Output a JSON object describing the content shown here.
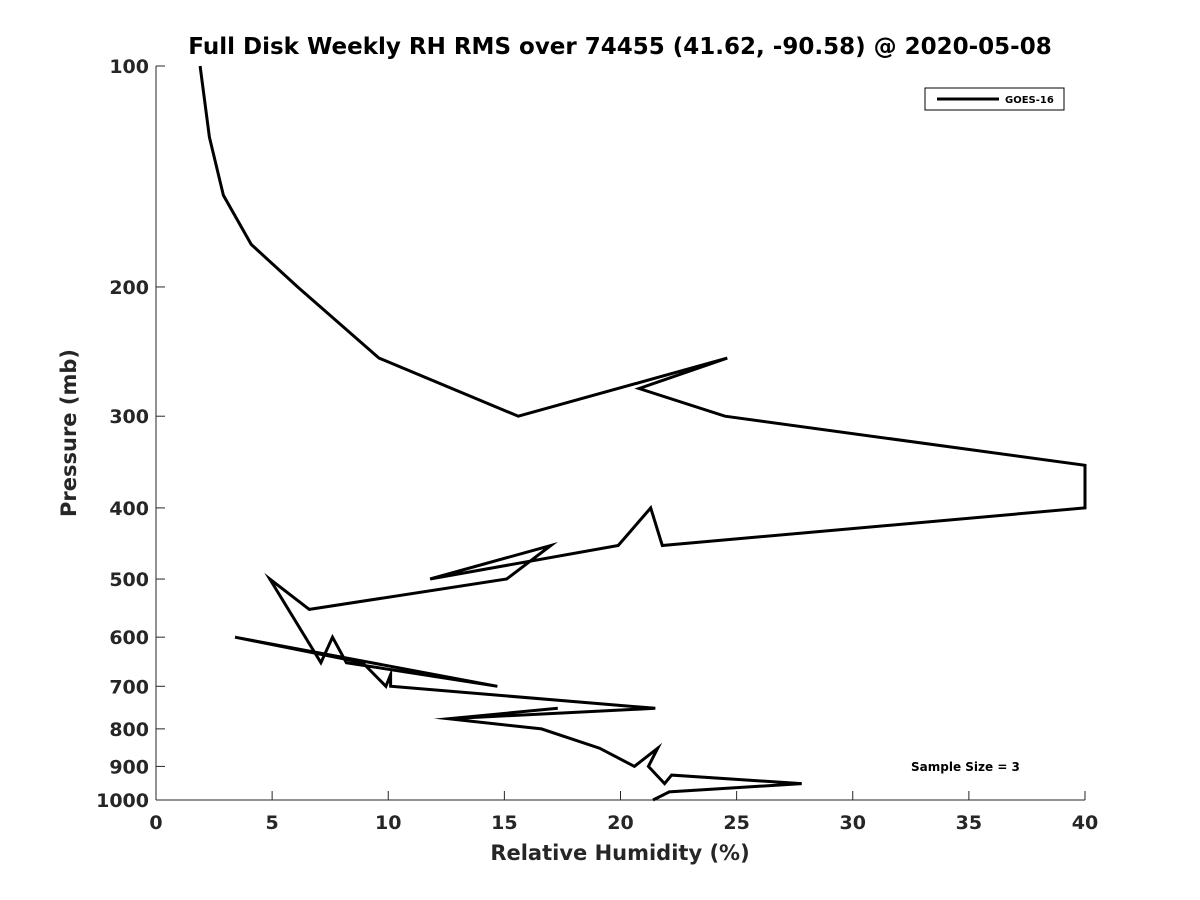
{
  "chart_data": {
    "type": "line",
    "title": "Full Disk Weekly RH RMS over 74455 (41.62, -90.58) @ 2020-05-08",
    "xlabel": "Relative Humidity (%)",
    "ylabel": "Pressure (mb)",
    "xlim": [
      0,
      40
    ],
    "ylim": [
      100,
      1000
    ],
    "y_scale": "log",
    "y_reversed": true,
    "grid": false,
    "legend_position": "top-right",
    "xticks": [
      "0",
      "5",
      "10",
      "15",
      "20",
      "25",
      "30",
      "35",
      "40"
    ],
    "yticks": [
      "100",
      "200",
      "300",
      "400",
      "500",
      "600",
      "700",
      "800",
      "900",
      "1000"
    ],
    "annotation": "Sample Size = 3",
    "color": "#000000",
    "series": [
      {
        "name": "GOES-16",
        "points": [
          [
            1.9,
            100
          ],
          [
            2.3,
            125
          ],
          [
            2.9,
            150
          ],
          [
            4.1,
            175
          ],
          [
            6.1,
            200
          ],
          [
            9.6,
            250
          ],
          [
            15.6,
            300
          ],
          [
            24.6,
            250
          ],
          [
            20.8,
            275
          ],
          [
            24.5,
            300
          ],
          [
            40.0,
            350
          ],
          [
            40.0,
            400
          ],
          [
            21.8,
            450
          ],
          [
            21.3,
            400
          ],
          [
            19.9,
            450
          ],
          [
            11.8,
            500
          ],
          [
            17.0,
            450
          ],
          [
            15.1,
            500
          ],
          [
            6.6,
            550
          ],
          [
            4.9,
            500
          ],
          [
            7.1,
            650
          ],
          [
            7.6,
            600
          ],
          [
            8.2,
            650
          ],
          [
            14.7,
            700
          ],
          [
            3.4,
            600
          ],
          [
            8.9,
            650
          ],
          [
            9.9,
            700
          ],
          [
            10.1,
            675
          ],
          [
            10.1,
            700
          ],
          [
            21.5,
            750
          ],
          [
            12.6,
            775
          ],
          [
            17.3,
            750
          ],
          [
            12.6,
            775
          ],
          [
            16.6,
            800
          ],
          [
            19.1,
            850
          ],
          [
            20.6,
            900
          ],
          [
            21.6,
            850
          ],
          [
            21.2,
            900
          ],
          [
            21.9,
            950
          ],
          [
            22.2,
            925
          ],
          [
            27.8,
            950
          ],
          [
            22.1,
            975
          ],
          [
            21.4,
            1000
          ]
        ]
      }
    ]
  }
}
